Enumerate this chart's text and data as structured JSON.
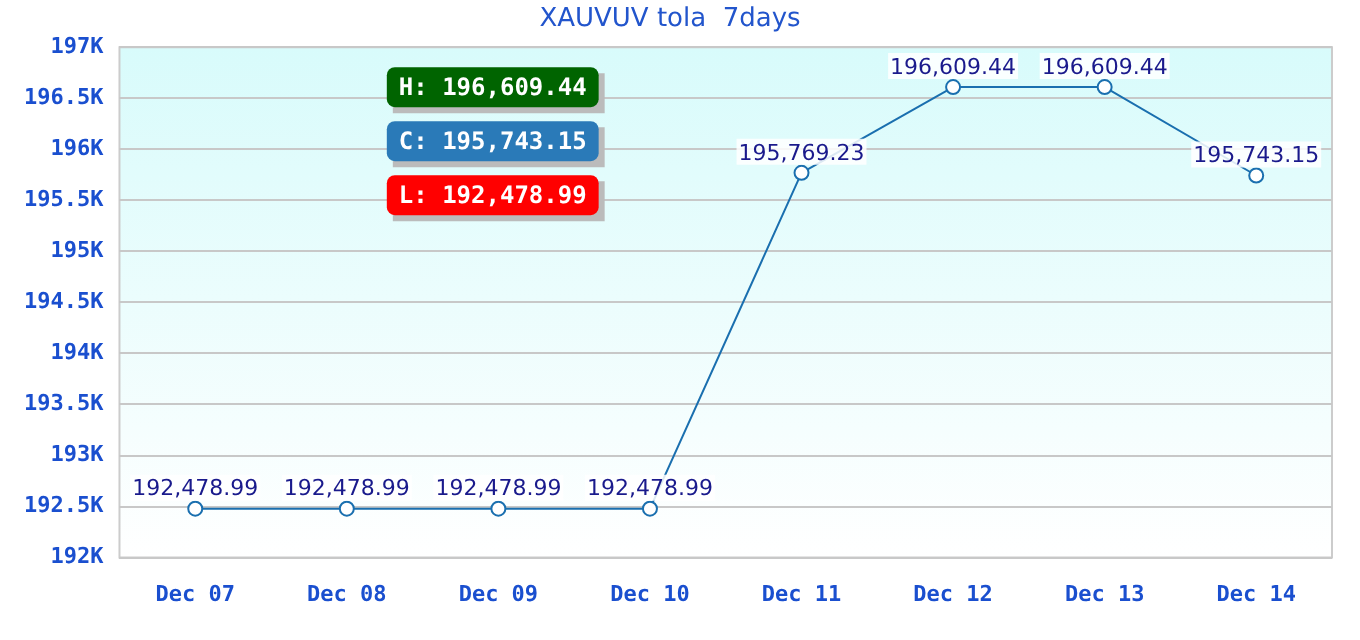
{
  "chart_data": {
    "type": "line",
    "title": "XAUVUV tola  7days",
    "categories": [
      "Dec 07",
      "Dec 08",
      "Dec 09",
      "Dec 10",
      "Dec 11",
      "Dec 12",
      "Dec 13",
      "Dec 14"
    ],
    "series": [
      {
        "color": "#1a6faf",
        "values": [
          192478.99,
          192478.99,
          192478.99,
          192478.99,
          195769.23,
          196609.44,
          196609.44,
          195743.15
        ],
        "value_labels": [
          "192,478.99",
          "192,478.99",
          "192,478.99",
          "192,478.99",
          "195,769.23",
          "196,609.44",
          "196,609.44",
          "195,743.15"
        ]
      }
    ],
    "ylim": [
      192000,
      197000
    ],
    "yticks": [
      {
        "value": 192000,
        "label": "192K"
      },
      {
        "value": 192500,
        "label": "192.5K"
      },
      {
        "value": 193000,
        "label": "193K"
      },
      {
        "value": 193500,
        "label": "193.5K"
      },
      {
        "value": 194000,
        "label": "194K"
      },
      {
        "value": 194500,
        "label": "194.5K"
      },
      {
        "value": 195000,
        "label": "195K"
      },
      {
        "value": 195500,
        "label": "195.5K"
      },
      {
        "value": 196000,
        "label": "196K"
      },
      {
        "value": 196500,
        "label": "196.5K"
      },
      {
        "value": 197000,
        "label": "197K"
      }
    ],
    "annotations": [
      "H: 196,609.44",
      "C: 195,743.15",
      "L: 192,478.99"
    ],
    "grid": "y",
    "legend": false,
    "marker": "circle",
    "line_style": "solid"
  }
}
